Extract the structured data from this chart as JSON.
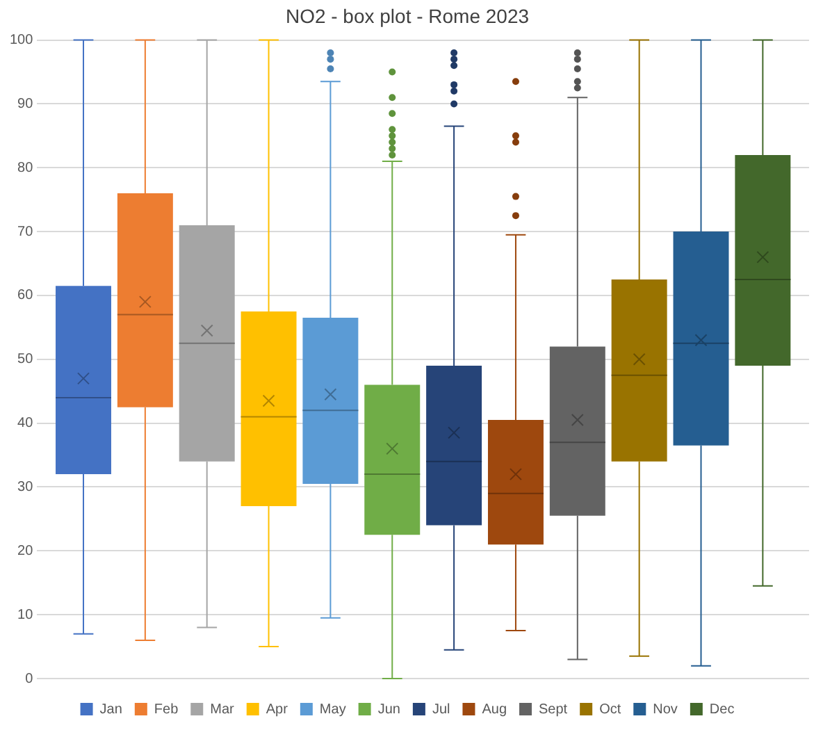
{
  "chart_data": {
    "type": "box",
    "title": "NO2 - box plot - Rome 2023",
    "categories": [
      null
    ],
    "ylim": [
      0,
      100
    ],
    "yticks": [
      0,
      10,
      20,
      30,
      40,
      50,
      60,
      70,
      80,
      90,
      100
    ],
    "grid": "y",
    "legend": "bottom",
    "tick_labels": "y",
    "marker": "circle",
    "series": [
      {
        "name": "Jan",
        "color": "#4472c4",
        "boxes": [
          {
            "low": 7,
            "q1": 32,
            "median": 44,
            "q3": 61.5,
            "high": 100,
            "mean": 47
          }
        ]
      },
      {
        "name": "Feb",
        "color": "#ed7d31",
        "boxes": [
          {
            "low": 6,
            "q1": 42.5,
            "median": 57,
            "q3": 76,
            "high": 100,
            "mean": 59
          }
        ]
      },
      {
        "name": "Mar",
        "color": "#a5a5a5",
        "boxes": [
          {
            "low": 8,
            "q1": 34,
            "median": 52.5,
            "q3": 71,
            "high": 100,
            "mean": 54.5
          }
        ]
      },
      {
        "name": "Apr",
        "color": "#ffc000",
        "boxes": [
          {
            "low": 5,
            "q1": 27,
            "median": 41,
            "q3": 57.5,
            "high": 100,
            "mean": 43.5
          }
        ]
      },
      {
        "name": "May",
        "color": "#5b9bd5",
        "boxes": [
          {
            "low": 9.5,
            "q1": 30.5,
            "median": 42,
            "q3": 56.5,
            "high": 93.5,
            "mean": 44.5,
            "outliers": [
              95.5,
              97,
              98
            ]
          }
        ]
      },
      {
        "name": "Jun",
        "color": "#70ad47",
        "boxes": [
          {
            "low": 0,
            "q1": 22.5,
            "median": 32,
            "q3": 46,
            "high": 81,
            "mean": 36,
            "outliers": [
              82,
              83,
              84,
              85,
              86,
              88.5,
              91,
              95
            ]
          }
        ]
      },
      {
        "name": "Jul",
        "color": "#264478",
        "boxes": [
          {
            "low": 4.5,
            "q1": 24,
            "median": 34,
            "q3": 49,
            "high": 86.5,
            "mean": 38.5,
            "outliers": [
              90,
              92,
              93,
              96,
              97,
              98
            ]
          }
        ]
      },
      {
        "name": "Aug",
        "color": "#9e480e",
        "boxes": [
          {
            "low": 7.5,
            "q1": 21,
            "median": 29,
            "q3": 40.5,
            "high": 69.5,
            "mean": 32,
            "outliers": [
              72.5,
              75.5,
              84,
              85,
              93.5
            ]
          }
        ]
      },
      {
        "name": "Sept",
        "color": "#636363",
        "boxes": [
          {
            "low": 3,
            "q1": 25.5,
            "median": 37,
            "q3": 52,
            "high": 91,
            "mean": 40.5,
            "outliers": [
              92.5,
              93.5,
              95.5,
              97,
              98
            ]
          }
        ]
      },
      {
        "name": "Oct",
        "color": "#997300",
        "boxes": [
          {
            "low": 3.5,
            "q1": 34,
            "median": 47.5,
            "q3": 62.5,
            "high": 100,
            "mean": 50
          }
        ]
      },
      {
        "name": "Nov",
        "color": "#255e91",
        "boxes": [
          {
            "low": 2,
            "q1": 36.5,
            "median": 52.5,
            "q3": 70,
            "high": 100,
            "mean": 53
          }
        ]
      },
      {
        "name": "Dec",
        "color": "#43682b",
        "boxes": [
          {
            "low": 14.5,
            "q1": 49,
            "median": 62.5,
            "q3": 82,
            "high": 100,
            "mean": 66
          }
        ]
      }
    ]
  }
}
